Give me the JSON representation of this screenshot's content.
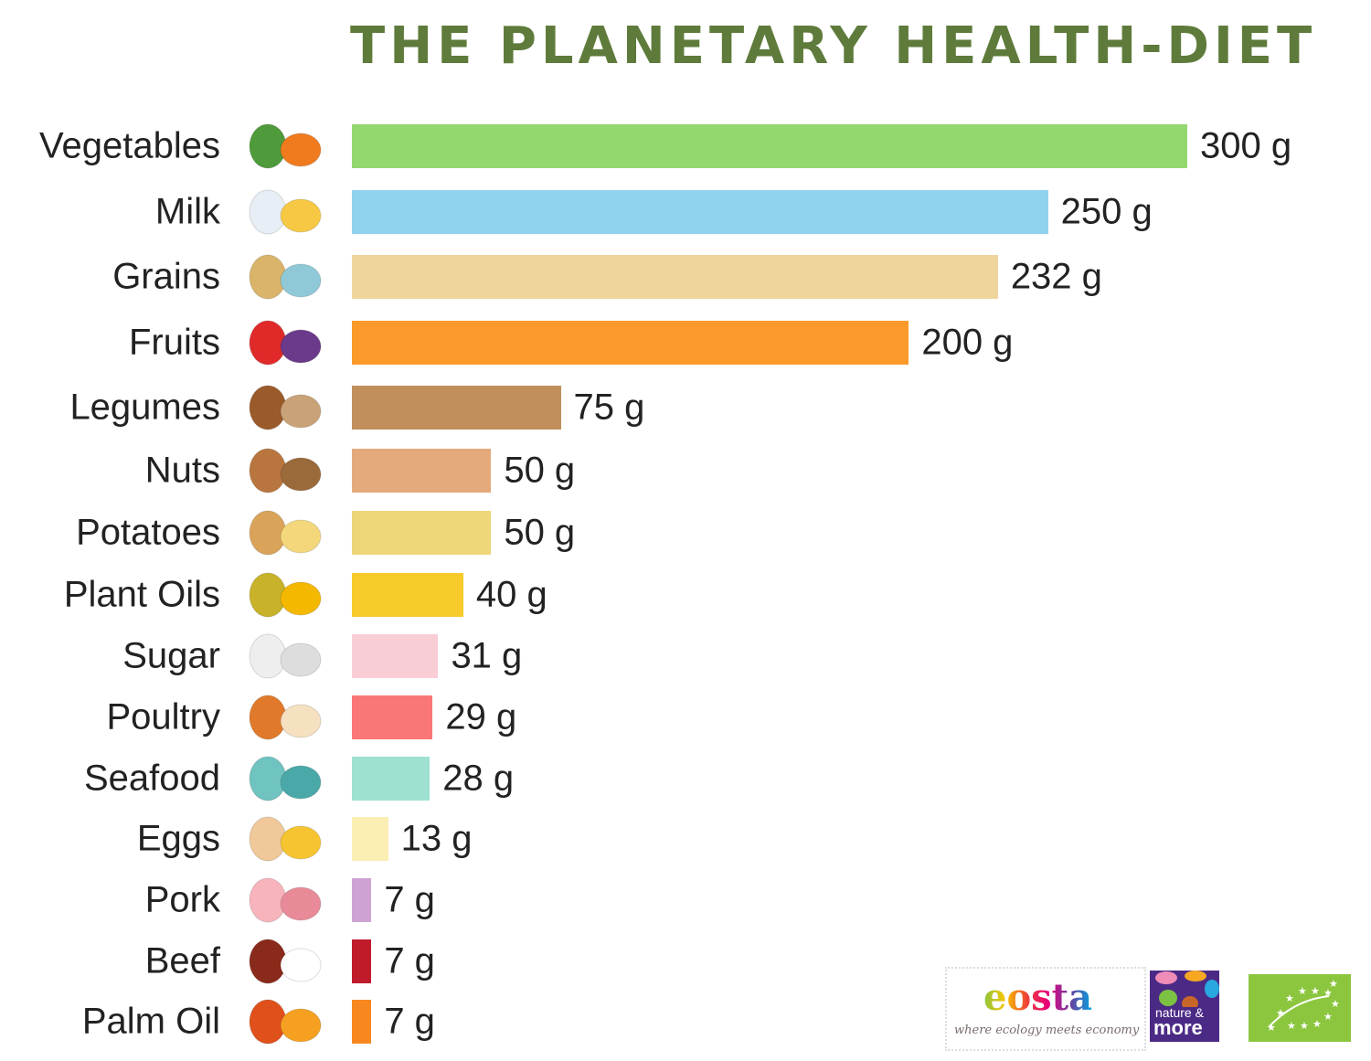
{
  "chart_data": {
    "type": "bar",
    "orientation": "horizontal",
    "title": "THE PLANETARY HEALTH-DIET",
    "unit": "g",
    "categories": [
      "Vegetables",
      "Milk",
      "Grains",
      "Fruits",
      "Legumes",
      "Nuts",
      "Potatoes",
      "Plant Oils",
      "Sugar",
      "Poultry",
      "Seafood",
      "Eggs",
      "Pork",
      "Beef",
      "Palm Oil"
    ],
    "values": [
      300,
      250,
      232,
      200,
      75,
      50,
      50,
      40,
      31,
      29,
      28,
      13,
      7,
      7,
      7
    ],
    "value_labels": [
      "300 g",
      "250 g",
      "232 g",
      "200 g",
      "75 g",
      "50 g",
      "50 g",
      "40 g",
      "31 g",
      "29 g",
      "28 g",
      "13 g",
      "7 g",
      "7 g",
      "7 g"
    ],
    "colors": [
      "#93d86f",
      "#90d3ef",
      "#efd49c",
      "#fb9a2b",
      "#c18f5c",
      "#e4aa7b",
      "#ecd678",
      "#f6cb2a",
      "#f9cdd5",
      "#f97877",
      "#9ee1d1",
      "#fbeeb2",
      "#cfa2d4",
      "#c01b2a",
      "#f7881f"
    ],
    "icons": [
      "vegetables-icon",
      "milk-cheese-icon",
      "grains-icon",
      "fruits-icon",
      "legumes-icon",
      "nuts-icon",
      "potatoes-icon",
      "plant-oils-icon",
      "sugar-icon",
      "poultry-icon",
      "seafood-icon",
      "eggs-icon",
      "pork-icon",
      "beef-icon",
      "palm-oil-icon"
    ],
    "icon_colors": [
      [
        "#4f9a3a",
        "#f07b1f"
      ],
      [
        "#e8eef5",
        "#f7c843"
      ],
      [
        "#d9b46a",
        "#8fc9d8"
      ],
      [
        "#e02a2a",
        "#6b3a8a"
      ],
      [
        "#9a5a2a",
        "#c9a278"
      ],
      [
        "#b8763e",
        "#9a6a3a"
      ],
      [
        "#d9a35a",
        "#f3d77a"
      ],
      [
        "#c8b22a",
        "#f5b800"
      ],
      [
        "#eeeeee",
        "#dddddd"
      ],
      [
        "#e07a2a",
        "#f5e0c0"
      ],
      [
        "#6fc3c0",
        "#4aa9a8"
      ],
      [
        "#f0c89a",
        "#f6c431"
      ],
      [
        "#f7b4bc",
        "#e88a98"
      ],
      [
        "#8a2a1a",
        "#ffffff"
      ],
      [
        "#e0501a",
        "#f5a020"
      ]
    ],
    "xlim": [
      0,
      300
    ],
    "grid": false
  },
  "logos": {
    "eosta": "eosta",
    "eosta_tagline": "where ecology meets economy",
    "nature_more_top": "nature &",
    "nature_more_bottom": "more"
  }
}
